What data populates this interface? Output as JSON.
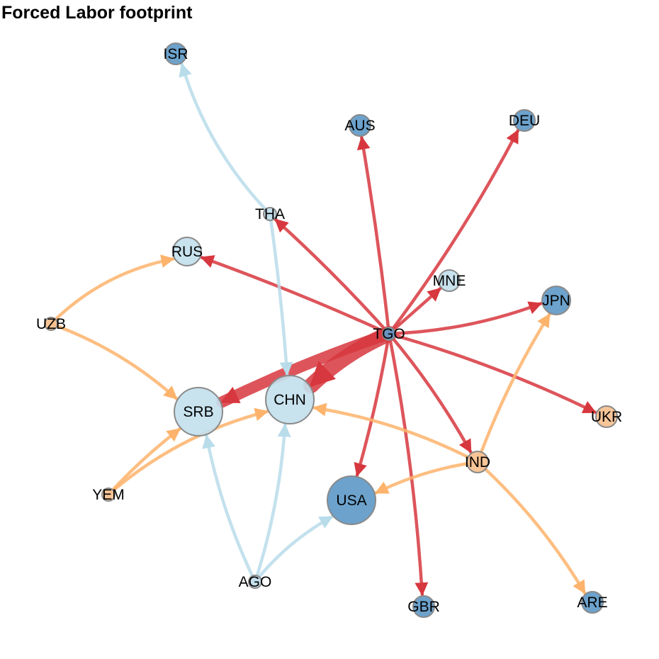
{
  "title": "Forced Labor footprint",
  "colors": {
    "edge_red": "#d7373e",
    "edge_orange": "#fdb36b",
    "edge_lightblue": "#b8dcea",
    "node_darkblue": "#5f9ac8",
    "node_lightblue": "#c3e0ed",
    "node_peach": "#f6c08f",
    "node_grey": "#a9a9a9",
    "node_border": "#8a8a8a"
  },
  "nodes": [
    {
      "id": "ISR",
      "label": "ISR",
      "size": "small",
      "color_key": "node_darkblue"
    },
    {
      "id": "AUS",
      "label": "AUS",
      "size": "small",
      "color_key": "node_darkblue"
    },
    {
      "id": "DEU",
      "label": "DEU",
      "size": "small",
      "color_key": "node_darkblue"
    },
    {
      "id": "THA",
      "label": "THA",
      "size": "tiny",
      "color_key": "node_lightblue"
    },
    {
      "id": "RUS",
      "label": "RUS",
      "size": "medium",
      "color_key": "node_lightblue"
    },
    {
      "id": "MNE",
      "label": "MNE",
      "size": "small",
      "color_key": "node_lightblue"
    },
    {
      "id": "JPN",
      "label": "JPN",
      "size": "medium",
      "color_key": "node_darkblue"
    },
    {
      "id": "UZB",
      "label": "UZB",
      "size": "tiny",
      "color_key": "node_peach"
    },
    {
      "id": "TGO",
      "label": "TGO",
      "size": "tiny",
      "color_key": "node_darkblue"
    },
    {
      "id": "CHN",
      "label": "CHN",
      "size": "large",
      "color_key": "node_lightblue"
    },
    {
      "id": "SRB",
      "label": "SRB",
      "size": "large",
      "color_key": "node_lightblue"
    },
    {
      "id": "UKR",
      "label": "UKR",
      "size": "small",
      "color_key": "node_peach"
    },
    {
      "id": "IND",
      "label": "IND",
      "size": "small",
      "color_key": "node_peach"
    },
    {
      "id": "YEM",
      "label": "YEM",
      "size": "tiny",
      "color_key": "node_peach"
    },
    {
      "id": "USA",
      "label": "USA",
      "size": "large",
      "color_key": "node_darkblue"
    },
    {
      "id": "AGO",
      "label": "AGO",
      "size": "tiny",
      "color_key": "node_lightblue"
    },
    {
      "id": "GBR",
      "label": "GBR",
      "size": "small",
      "color_key": "node_darkblue"
    },
    {
      "id": "ARE",
      "label": "ARE",
      "size": "small",
      "color_key": "node_darkblue"
    }
  ],
  "edges": [
    {
      "from": "TGO",
      "to": "CHN",
      "weight": "heavy",
      "color_key": "edge_red"
    },
    {
      "from": "TGO",
      "to": "SRB",
      "weight": "heavy",
      "color_key": "edge_red"
    },
    {
      "from": "TGO",
      "to": "AUS",
      "weight": "normal",
      "color_key": "edge_red"
    },
    {
      "from": "TGO",
      "to": "DEU",
      "weight": "normal",
      "color_key": "edge_red"
    },
    {
      "from": "TGO",
      "to": "THA",
      "weight": "normal",
      "color_key": "edge_red"
    },
    {
      "from": "TGO",
      "to": "RUS",
      "weight": "normal",
      "color_key": "edge_red"
    },
    {
      "from": "TGO",
      "to": "MNE",
      "weight": "normal",
      "color_key": "edge_red"
    },
    {
      "from": "TGO",
      "to": "JPN",
      "weight": "normal",
      "color_key": "edge_red"
    },
    {
      "from": "TGO",
      "to": "UKR",
      "weight": "normal",
      "color_key": "edge_red"
    },
    {
      "from": "TGO",
      "to": "IND",
      "weight": "normal",
      "color_key": "edge_red"
    },
    {
      "from": "TGO",
      "to": "USA",
      "weight": "normal",
      "color_key": "edge_red"
    },
    {
      "from": "TGO",
      "to": "GBR",
      "weight": "normal",
      "color_key": "edge_red"
    },
    {
      "from": "THA",
      "to": "ISR",
      "weight": "normal",
      "color_key": "edge_lightblue"
    },
    {
      "from": "THA",
      "to": "CHN",
      "weight": "normal",
      "color_key": "edge_lightblue"
    },
    {
      "from": "UZB",
      "to": "RUS",
      "weight": "normal",
      "color_key": "edge_orange"
    },
    {
      "from": "UZB",
      "to": "SRB",
      "weight": "normal",
      "color_key": "edge_orange"
    },
    {
      "from": "YEM",
      "to": "SRB",
      "weight": "normal",
      "color_key": "edge_orange"
    },
    {
      "from": "YEM",
      "to": "CHN",
      "weight": "normal",
      "color_key": "edge_orange"
    },
    {
      "from": "IND",
      "to": "CHN",
      "weight": "normal",
      "color_key": "edge_orange"
    },
    {
      "from": "IND",
      "to": "USA",
      "weight": "normal",
      "color_key": "edge_orange"
    },
    {
      "from": "IND",
      "to": "JPN",
      "weight": "normal",
      "color_key": "edge_orange"
    },
    {
      "from": "IND",
      "to": "ARE",
      "weight": "normal",
      "color_key": "edge_orange"
    },
    {
      "from": "AGO",
      "to": "SRB",
      "weight": "normal",
      "color_key": "edge_lightblue"
    },
    {
      "from": "AGO",
      "to": "CHN",
      "weight": "normal",
      "color_key": "edge_lightblue"
    },
    {
      "from": "AGO",
      "to": "USA",
      "weight": "normal",
      "color_key": "edge_lightblue"
    }
  ]
}
